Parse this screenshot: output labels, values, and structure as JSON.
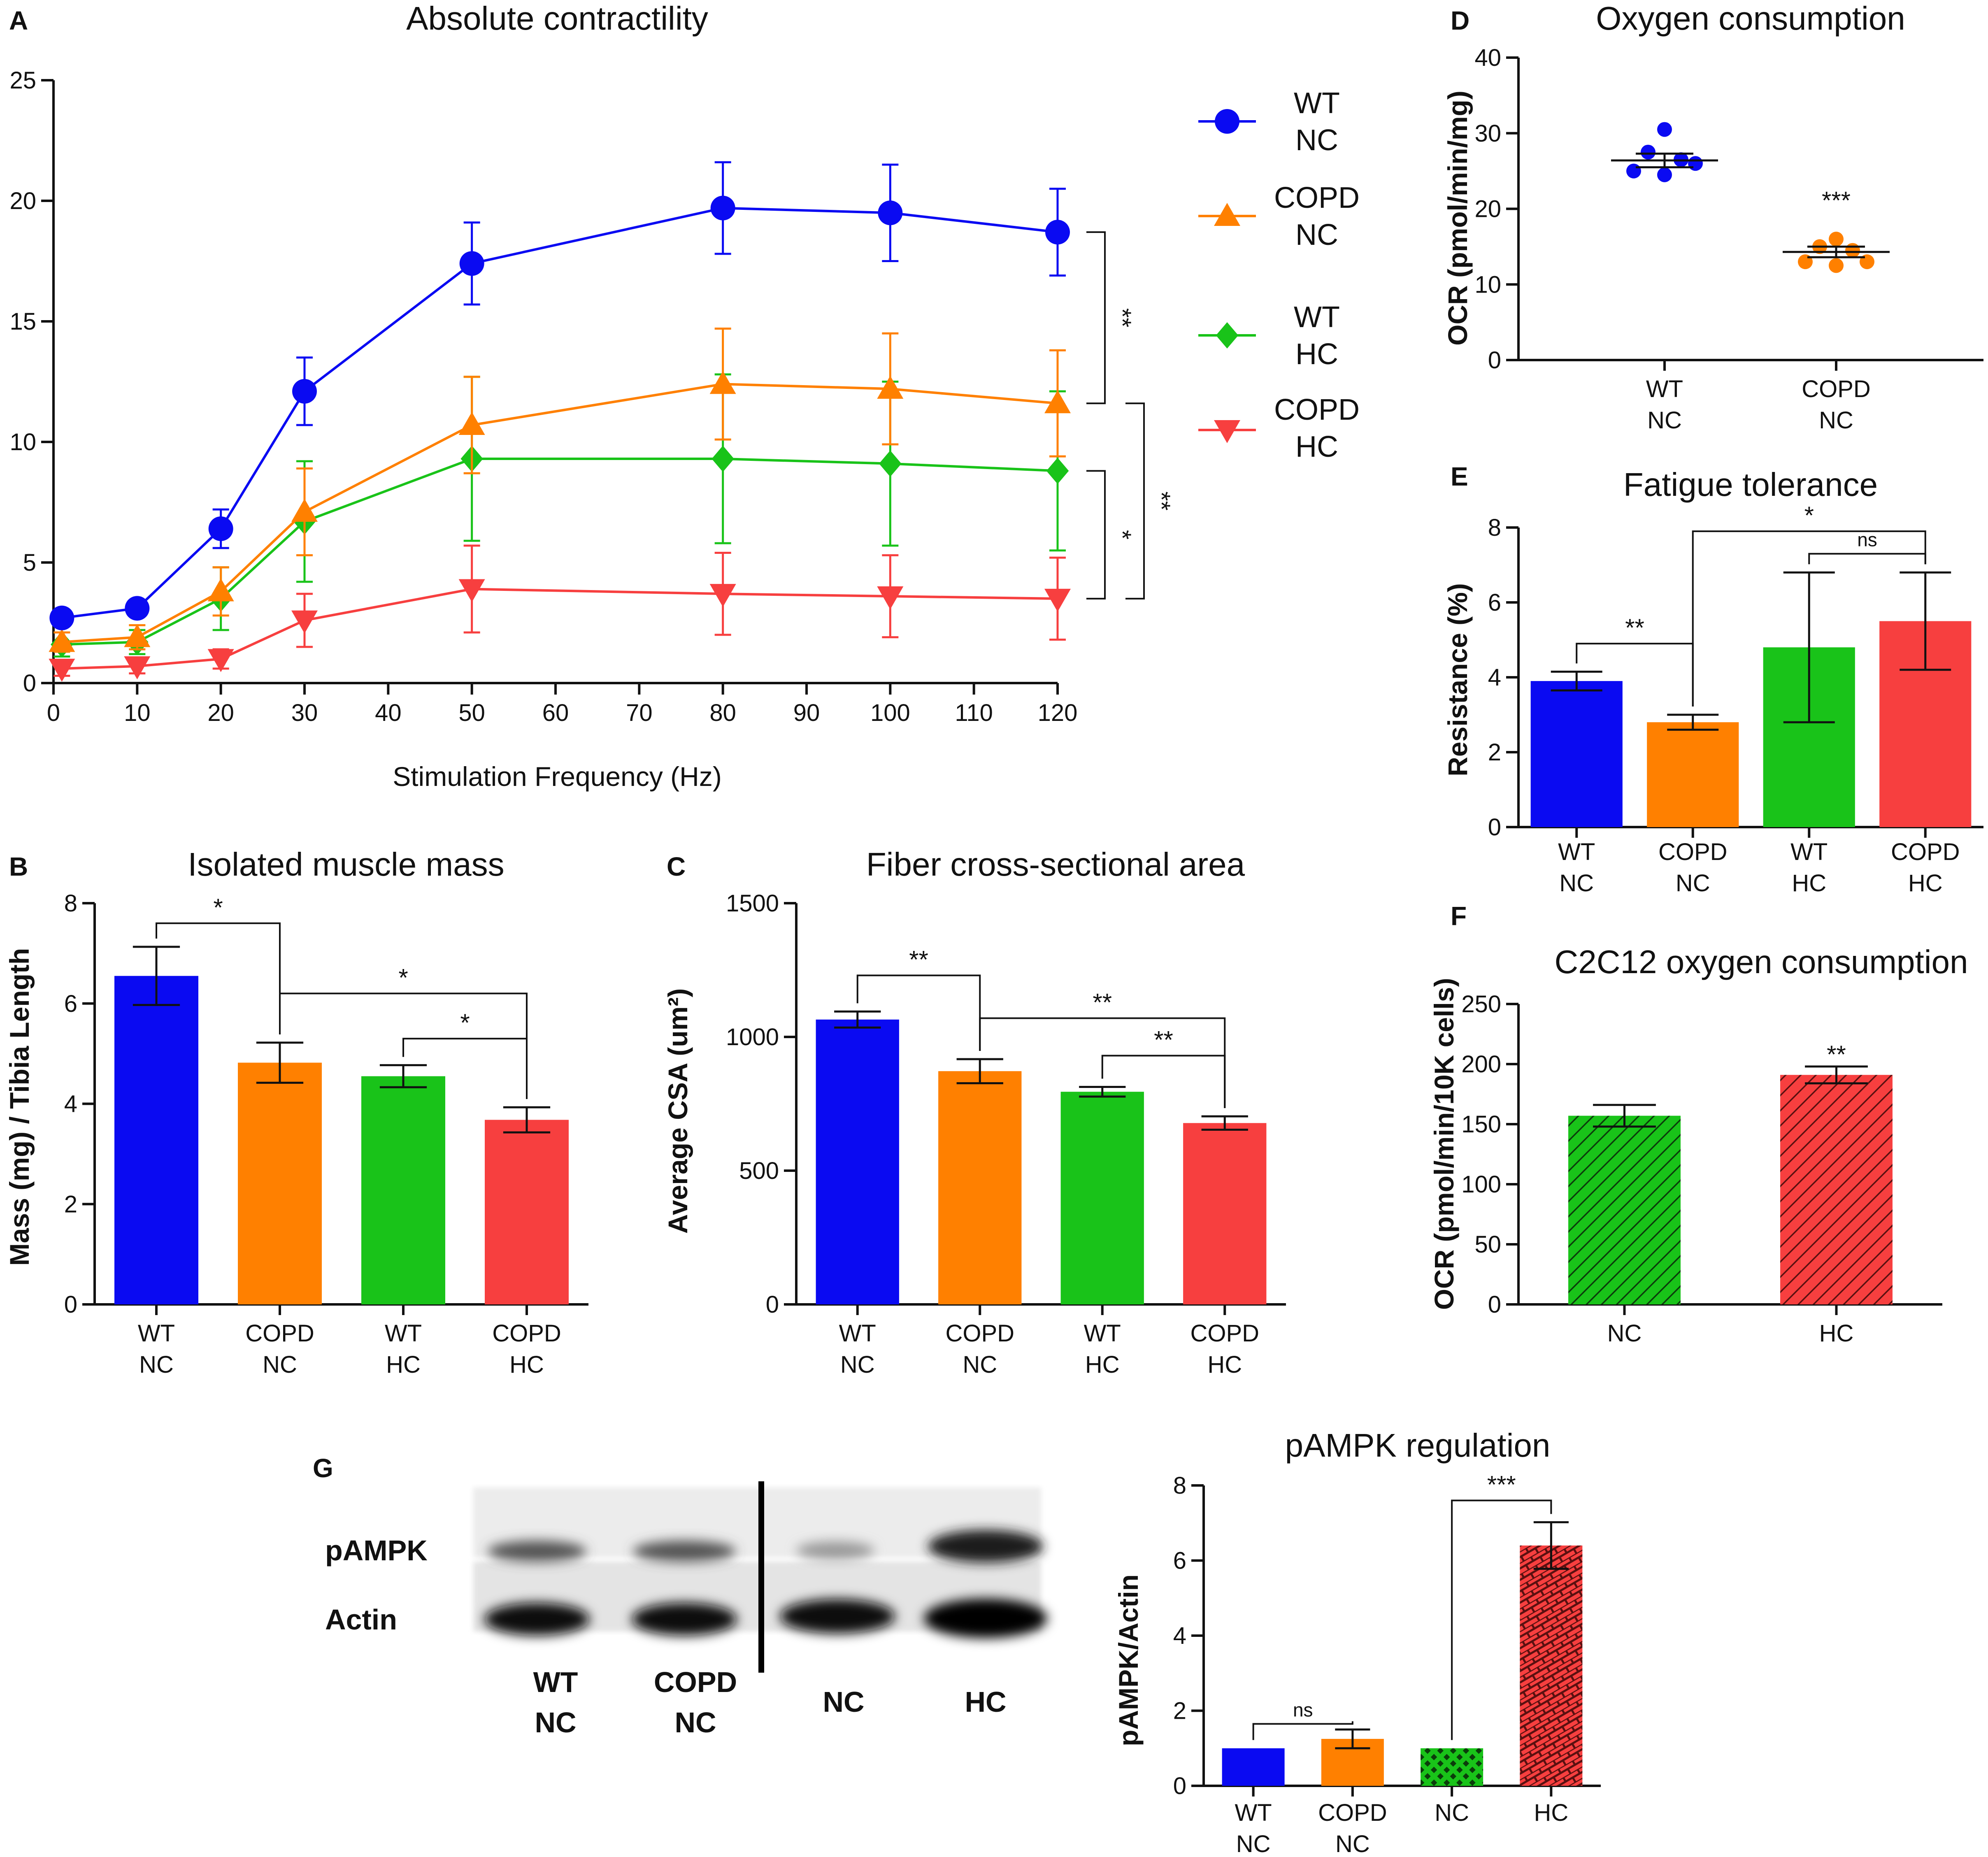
{
  "colors": {
    "wt_nc": "#0A0AF2",
    "copd_nc": "#FF8000",
    "wt_hc": "#19C319",
    "copd_hc": "#F73F3F",
    "axis": "#111111"
  },
  "panel_letters": {
    "a": "A",
    "b": "B",
    "c": "C",
    "d": "D",
    "e": "E",
    "f": "F",
    "g": "G"
  },
  "chart_data": [
    {
      "id": "A",
      "type": "line",
      "title": "Absolute contractility",
      "xlabel": "Stimulation Frequency (Hz)",
      "ylabel": "",
      "xlim": [
        0,
        120
      ],
      "ylim": [
        0,
        25
      ],
      "xticks": [
        0,
        10,
        20,
        30,
        40,
        50,
        60,
        70,
        80,
        90,
        100,
        110,
        120
      ],
      "yticks": [
        0,
        5,
        10,
        15,
        20,
        25
      ],
      "x": [
        1,
        10,
        20,
        30,
        50,
        80,
        100,
        120
      ],
      "series": [
        {
          "key": "wt_nc",
          "name_line1": "WT",
          "name_line2": "NC",
          "marker": "circle",
          "values": [
            2.7,
            3.1,
            6.4,
            12.1,
            17.4,
            19.7,
            19.5,
            18.7
          ],
          "errors": [
            0.2,
            0.3,
            0.8,
            1.4,
            1.7,
            1.9,
            2.0,
            1.8
          ]
        },
        {
          "key": "copd_nc",
          "name_line1": "COPD",
          "name_line2": "NC",
          "marker": "triangle-up",
          "values": [
            1.7,
            1.9,
            3.8,
            7.1,
            10.7,
            12.4,
            12.2,
            11.6
          ],
          "errors": [
            0.4,
            0.5,
            1.0,
            1.8,
            2.0,
            2.3,
            2.3,
            2.2
          ]
        },
        {
          "key": "wt_hc",
          "name_line1": "WT",
          "name_line2": "HC",
          "marker": "diamond",
          "values": [
            1.6,
            1.7,
            3.5,
            6.7,
            9.3,
            9.3,
            9.1,
            8.8
          ],
          "errors": [
            0.5,
            0.5,
            1.3,
            2.5,
            3.4,
            3.5,
            3.4,
            3.3
          ]
        },
        {
          "key": "copd_hc",
          "name_line1": "COPD",
          "name_line2": "HC",
          "marker": "triangle-down",
          "values": [
            0.6,
            0.7,
            1.0,
            2.6,
            3.9,
            3.7,
            3.6,
            3.5
          ],
          "errors": [
            0.3,
            0.3,
            0.4,
            1.1,
            1.8,
            1.7,
            1.7,
            1.7
          ]
        }
      ],
      "significance": [
        {
          "label": "**",
          "from": 18.7,
          "to": 11.6
        },
        {
          "label": "*",
          "from": 8.8,
          "to": 3.5
        },
        {
          "label": "**",
          "from": 11.6,
          "to": 3.5
        }
      ]
    },
    {
      "id": "B",
      "type": "bar",
      "title": "Isolated muscle mass",
      "ylabel": "Mass (mg) / Tibia Length",
      "ylim": [
        0,
        8
      ],
      "yticks": [
        0,
        2,
        4,
        6,
        8
      ],
      "categories": [
        [
          "WT",
          "NC"
        ],
        [
          "COPD",
          "NC"
        ],
        [
          "WT",
          "HC"
        ],
        [
          "COPD",
          "HC"
        ]
      ],
      "values": [
        6.55,
        4.82,
        4.55,
        3.68
      ],
      "errors": [
        0.58,
        0.4,
        0.22,
        0.25
      ],
      "significance": [
        {
          "label": "*",
          "a": 0,
          "b": 1,
          "y": 7.6
        },
        {
          "label": "*",
          "a": 1,
          "b": 3,
          "y": 6.2
        },
        {
          "label": "*",
          "a": 2,
          "b": 3,
          "y": 5.3
        }
      ]
    },
    {
      "id": "C",
      "type": "bar",
      "title": "Fiber cross-sectional area",
      "ylabel": "Average CSA (um²)",
      "ylim": [
        0,
        1500
      ],
      "yticks": [
        0,
        500,
        1000,
        1500
      ],
      "categories": [
        [
          "WT",
          "NC"
        ],
        [
          "COPD",
          "NC"
        ],
        [
          "WT",
          "HC"
        ],
        [
          "COPD",
          "HC"
        ]
      ],
      "values": [
        1065,
        872,
        795,
        678
      ],
      "errors": [
        30,
        45,
        18,
        25
      ],
      "significance": [
        {
          "label": "**",
          "a": 0,
          "b": 1,
          "y": 1230
        },
        {
          "label": "**",
          "a": 1,
          "b": 3,
          "y": 1070
        },
        {
          "label": "**",
          "a": 2,
          "b": 3,
          "y": 930
        }
      ]
    },
    {
      "id": "D",
      "type": "scatter",
      "title": "Oxygen consumption",
      "ylabel": "OCR (pmol/min/mg)",
      "ylim": [
        0,
        40
      ],
      "yticks": [
        0,
        10,
        20,
        30,
        40
      ],
      "categories": [
        [
          "WT",
          "NC"
        ],
        [
          "COPD",
          "NC"
        ]
      ],
      "points": [
        [
          30.5,
          27.5,
          26.5,
          26.0,
          25.0,
          24.5
        ],
        [
          16.0,
          15.0,
          14.5,
          13.0,
          13.0,
          12.5
        ]
      ],
      "means": [
        26.4,
        14.3
      ],
      "errors": [
        0.9,
        0.7
      ],
      "significance": [
        {
          "label": "***",
          "group": 1,
          "y": 20.0
        }
      ]
    },
    {
      "id": "E",
      "type": "bar",
      "title": "Fatigue tolerance",
      "ylabel": "Resistance (%)",
      "ylim": [
        0,
        8
      ],
      "yticks": [
        0,
        2,
        4,
        6,
        8
      ],
      "categories": [
        [
          "WT",
          "NC"
        ],
        [
          "COPD",
          "NC"
        ],
        [
          "WT",
          "HC"
        ],
        [
          "COPD",
          "HC"
        ]
      ],
      "values": [
        3.9,
        2.8,
        4.8,
        5.5
      ],
      "errors": [
        0.25,
        0.2,
        2.0,
        1.3
      ],
      "significance": [
        {
          "label": "**",
          "a": 0,
          "b": 1,
          "y": 4.9
        },
        {
          "label": "*",
          "a": 1,
          "b": 3,
          "y": 7.9
        },
        {
          "label": "ns",
          "a": 2,
          "b": 3,
          "y": 7.3
        }
      ]
    },
    {
      "id": "F",
      "type": "bar",
      "title": "C2C12 oxygen consumption",
      "ylabel": "OCR (pmol/min/10K cells)",
      "ylim": [
        0,
        250
      ],
      "yticks": [
        0,
        50,
        100,
        150,
        200,
        250
      ],
      "categories": [
        [
          "NC"
        ],
        [
          "HC"
        ]
      ],
      "values": [
        157,
        191
      ],
      "errors": [
        9,
        7
      ],
      "significance": [
        {
          "label": "**",
          "group": 1,
          "y": 201
        }
      ]
    },
    {
      "id": "G",
      "type": "bar",
      "title": "pAMPK regulation",
      "ylabel": "pAMPK/Actin",
      "ylim": [
        0,
        8
      ],
      "yticks": [
        0,
        2,
        4,
        6,
        8
      ],
      "categories": [
        [
          "WT",
          "NC"
        ],
        [
          "COPD",
          "NC"
        ],
        [
          "NC"
        ],
        [
          "HC"
        ]
      ],
      "values": [
        1.0,
        1.25,
        1.0,
        6.4
      ],
      "errors": [
        0,
        0.25,
        0,
        0.62
      ],
      "significance": [
        {
          "label": "ns",
          "a": 0,
          "b": 1,
          "y": 1.65
        },
        {
          "label": "***",
          "a": 2,
          "b": 3,
          "y": 7.6
        }
      ]
    }
  ],
  "blot": {
    "row_labels": [
      "pAMPK",
      "Actin"
    ],
    "lanes": [
      [
        "WT",
        "NC"
      ],
      [
        "COPD",
        "NC"
      ],
      [
        "NC"
      ],
      [
        "HC"
      ]
    ]
  }
}
